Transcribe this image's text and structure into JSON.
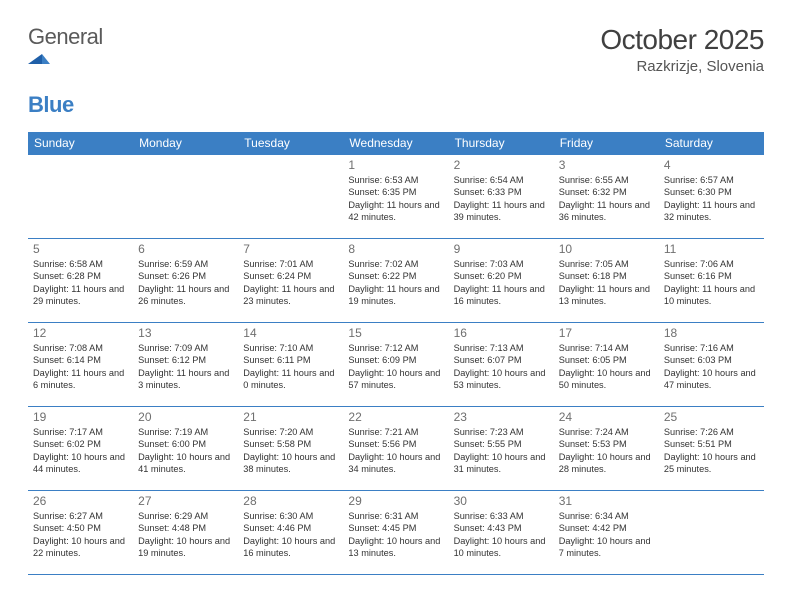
{
  "brand": {
    "word1": "General",
    "word2": "Blue"
  },
  "title": "October 2025",
  "location": "Razkrizje, Slovenia",
  "colors": {
    "header_bg": "#3b7fc4",
    "header_text": "#ffffff",
    "grid_line": "#3b7fc4",
    "daynum": "#6f6f6f",
    "body_text": "#333333",
    "title_text": "#404040",
    "logo_gray": "#5a5a5a",
    "logo_blue": "#3b7fc4",
    "background": "#ffffff"
  },
  "typography": {
    "title_fontsize": 28,
    "location_fontsize": 15,
    "header_cell_fontsize": 12,
    "daynum_fontsize": 12,
    "daytext_fontsize": 9.2
  },
  "day_headers": [
    "Sunday",
    "Monday",
    "Tuesday",
    "Wednesday",
    "Thursday",
    "Friday",
    "Saturday"
  ],
  "weeks": [
    [
      null,
      null,
      null,
      {
        "n": "1",
        "sr": "6:53 AM",
        "ss": "6:35 PM",
        "dl": "11 hours and 42 minutes."
      },
      {
        "n": "2",
        "sr": "6:54 AM",
        "ss": "6:33 PM",
        "dl": "11 hours and 39 minutes."
      },
      {
        "n": "3",
        "sr": "6:55 AM",
        "ss": "6:32 PM",
        "dl": "11 hours and 36 minutes."
      },
      {
        "n": "4",
        "sr": "6:57 AM",
        "ss": "6:30 PM",
        "dl": "11 hours and 32 minutes."
      }
    ],
    [
      {
        "n": "5",
        "sr": "6:58 AM",
        "ss": "6:28 PM",
        "dl": "11 hours and 29 minutes."
      },
      {
        "n": "6",
        "sr": "6:59 AM",
        "ss": "6:26 PM",
        "dl": "11 hours and 26 minutes."
      },
      {
        "n": "7",
        "sr": "7:01 AM",
        "ss": "6:24 PM",
        "dl": "11 hours and 23 minutes."
      },
      {
        "n": "8",
        "sr": "7:02 AM",
        "ss": "6:22 PM",
        "dl": "11 hours and 19 minutes."
      },
      {
        "n": "9",
        "sr": "7:03 AM",
        "ss": "6:20 PM",
        "dl": "11 hours and 16 minutes."
      },
      {
        "n": "10",
        "sr": "7:05 AM",
        "ss": "6:18 PM",
        "dl": "11 hours and 13 minutes."
      },
      {
        "n": "11",
        "sr": "7:06 AM",
        "ss": "6:16 PM",
        "dl": "11 hours and 10 minutes."
      }
    ],
    [
      {
        "n": "12",
        "sr": "7:08 AM",
        "ss": "6:14 PM",
        "dl": "11 hours and 6 minutes."
      },
      {
        "n": "13",
        "sr": "7:09 AM",
        "ss": "6:12 PM",
        "dl": "11 hours and 3 minutes."
      },
      {
        "n": "14",
        "sr": "7:10 AM",
        "ss": "6:11 PM",
        "dl": "11 hours and 0 minutes."
      },
      {
        "n": "15",
        "sr": "7:12 AM",
        "ss": "6:09 PM",
        "dl": "10 hours and 57 minutes."
      },
      {
        "n": "16",
        "sr": "7:13 AM",
        "ss": "6:07 PM",
        "dl": "10 hours and 53 minutes."
      },
      {
        "n": "17",
        "sr": "7:14 AM",
        "ss": "6:05 PM",
        "dl": "10 hours and 50 minutes."
      },
      {
        "n": "18",
        "sr": "7:16 AM",
        "ss": "6:03 PM",
        "dl": "10 hours and 47 minutes."
      }
    ],
    [
      {
        "n": "19",
        "sr": "7:17 AM",
        "ss": "6:02 PM",
        "dl": "10 hours and 44 minutes."
      },
      {
        "n": "20",
        "sr": "7:19 AM",
        "ss": "6:00 PM",
        "dl": "10 hours and 41 minutes."
      },
      {
        "n": "21",
        "sr": "7:20 AM",
        "ss": "5:58 PM",
        "dl": "10 hours and 38 minutes."
      },
      {
        "n": "22",
        "sr": "7:21 AM",
        "ss": "5:56 PM",
        "dl": "10 hours and 34 minutes."
      },
      {
        "n": "23",
        "sr": "7:23 AM",
        "ss": "5:55 PM",
        "dl": "10 hours and 31 minutes."
      },
      {
        "n": "24",
        "sr": "7:24 AM",
        "ss": "5:53 PM",
        "dl": "10 hours and 28 minutes."
      },
      {
        "n": "25",
        "sr": "7:26 AM",
        "ss": "5:51 PM",
        "dl": "10 hours and 25 minutes."
      }
    ],
    [
      {
        "n": "26",
        "sr": "6:27 AM",
        "ss": "4:50 PM",
        "dl": "10 hours and 22 minutes."
      },
      {
        "n": "27",
        "sr": "6:29 AM",
        "ss": "4:48 PM",
        "dl": "10 hours and 19 minutes."
      },
      {
        "n": "28",
        "sr": "6:30 AM",
        "ss": "4:46 PM",
        "dl": "10 hours and 16 minutes."
      },
      {
        "n": "29",
        "sr": "6:31 AM",
        "ss": "4:45 PM",
        "dl": "10 hours and 13 minutes."
      },
      {
        "n": "30",
        "sr": "6:33 AM",
        "ss": "4:43 PM",
        "dl": "10 hours and 10 minutes."
      },
      {
        "n": "31",
        "sr": "6:34 AM",
        "ss": "4:42 PM",
        "dl": "10 hours and 7 minutes."
      },
      null
    ]
  ],
  "labels": {
    "sunrise": "Sunrise: ",
    "sunset": "Sunset: ",
    "daylight": "Daylight: "
  }
}
